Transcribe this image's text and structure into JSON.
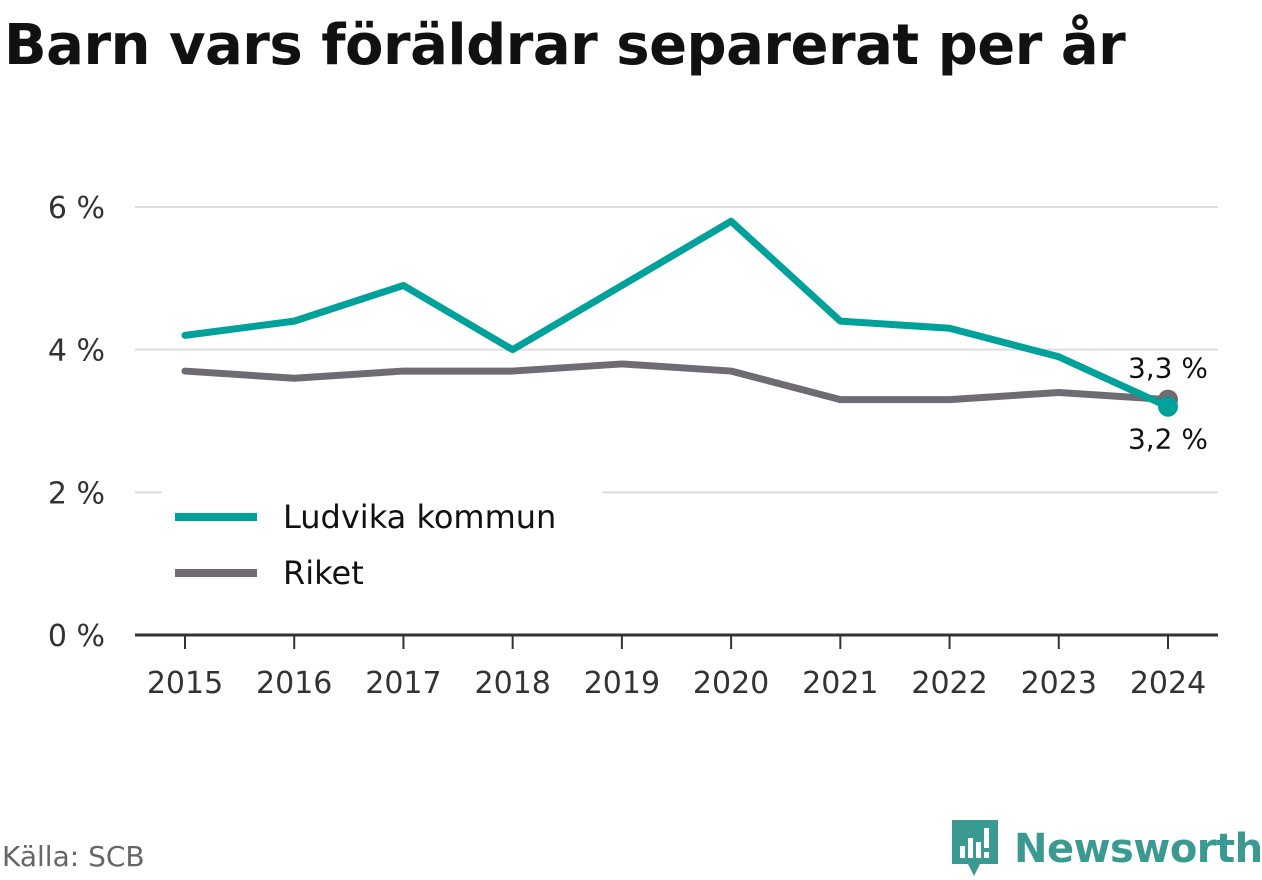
{
  "header": {
    "title": "Barn vars föräldrar separerat per år"
  },
  "footer": {
    "source": "Källa: SCB",
    "brand": "Newsworthy",
    "brand_icon": "newsworthy-logo-icon"
  },
  "chart_data": {
    "type": "line",
    "title": "Barn vars föräldrar separerat per år",
    "xlabel": "",
    "ylabel": "",
    "x": [
      "2015",
      "2016",
      "2017",
      "2018",
      "2019",
      "2020",
      "2021",
      "2022",
      "2023",
      "2024"
    ],
    "ylim": [
      0,
      6
    ],
    "yticks": [
      0,
      2,
      4,
      6
    ],
    "ytick_labels": [
      "0 %",
      "2 %",
      "4 %",
      "6 %"
    ],
    "grid": true,
    "legend_position": "bottom-left",
    "series": [
      {
        "name": "Ludvika kommun",
        "color": "#00a19a",
        "values": [
          4.2,
          4.4,
          4.9,
          4.0,
          4.9,
          5.8,
          4.4,
          4.3,
          3.9,
          3.2
        ],
        "end_label": "3,2 %"
      },
      {
        "name": "Riket",
        "color": "#6e6c72",
        "values": [
          3.7,
          3.6,
          3.7,
          3.7,
          3.8,
          3.7,
          3.3,
          3.3,
          3.4,
          3.3
        ],
        "end_label": "3,3 %"
      }
    ]
  }
}
